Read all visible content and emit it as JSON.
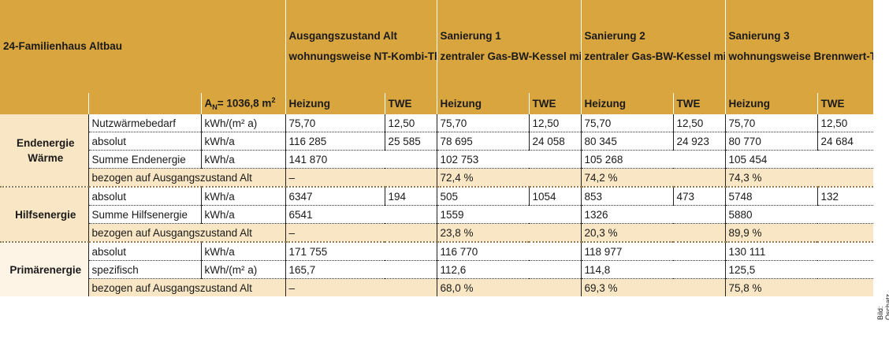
{
  "header": {
    "title": "24-Familienhaus Altbau",
    "an_label": "A",
    "an_sub": "N",
    "an_value": "= 1036,8 m",
    "an_sup": "2",
    "scenarios": [
      {
        "name": "Ausgangszustand Alt",
        "desc": "wohnungsweise NT-Kombi-Thermen (alt) (TWE im Durchflussprinzip)"
      },
      {
        "name": "Sanierung 1",
        "desc": "zentraler Gas-BW-Kessel mit Wohnungsstationen für Heizung und TWE"
      },
      {
        "name": "Sanierung 2",
        "desc": "zentraler Gas-BW-Kessel mit indirekt beheizten Speicher (ohne Zirkulationsunterbrechung)"
      },
      {
        "name": "Sanierung 3",
        "desc": "wohnungsweise Brennwert-Thermen (TWE im Durchflussprinzip)"
      }
    ],
    "col_heizung": "Heizung",
    "col_twe": "TWE"
  },
  "groups": {
    "endenergie": "Endenergie Wärme",
    "hilfsenergie": "Hilfsenergie",
    "primaerenergie": "Primärenergie"
  },
  "rows": {
    "nutz": {
      "label": "Nutzwärmebedarf",
      "unit": "kWh/(m² a)",
      "v": [
        "75,70",
        "12,50",
        "75,70",
        "12,50",
        "75,70",
        "12,50",
        "75,70",
        "12,50"
      ]
    },
    "end_abs": {
      "label": "absolut",
      "unit": "kWh/a",
      "v": [
        "116 285",
        "25 585",
        "78 695",
        "24 058",
        "80 345",
        "24 923",
        "80 770",
        "24 684"
      ]
    },
    "end_sum": {
      "label": "Summe Endenergie",
      "unit": "kWh/a",
      "v": [
        "141 870",
        "102 753",
        "105 268",
        "105 454"
      ]
    },
    "end_bez": {
      "label": "bezogen auf Ausgangszustand Alt",
      "v": [
        "–",
        "72,4 %",
        "74,2 %",
        "74,3 %"
      ]
    },
    "hilf_abs": {
      "label": "absolut",
      "unit": "kWh/a",
      "v": [
        "6347",
        "194",
        "505",
        "1054",
        "853",
        "473",
        "5748",
        "132"
      ]
    },
    "hilf_sum": {
      "label": "Summe Hilfsenergie",
      "unit": "kWh/a",
      "v": [
        "6541",
        "1559",
        "1326",
        "5880"
      ]
    },
    "hilf_bez": {
      "label": "bezogen auf Ausgangszustand Alt",
      "v": [
        "–",
        "23,8 %",
        "20,3 %",
        "89,9 %"
      ]
    },
    "prim_abs": {
      "label": "absolut",
      "unit": "kWh/a",
      "v": [
        "171 755",
        "116 770",
        "118 977",
        "130 111"
      ]
    },
    "prim_spez": {
      "label": "spezifisch",
      "unit": "kWh/(m² a)",
      "v": [
        "165,7",
        "112,6",
        "114,8",
        "125,5"
      ]
    },
    "prim_bez": {
      "label": "bezogen auf Ausgangszustand Alt",
      "v": [
        "–",
        "68,0 %",
        "69,3 %",
        "75,8 %"
      ]
    }
  },
  "credit": "Bild: Oschatz"
}
